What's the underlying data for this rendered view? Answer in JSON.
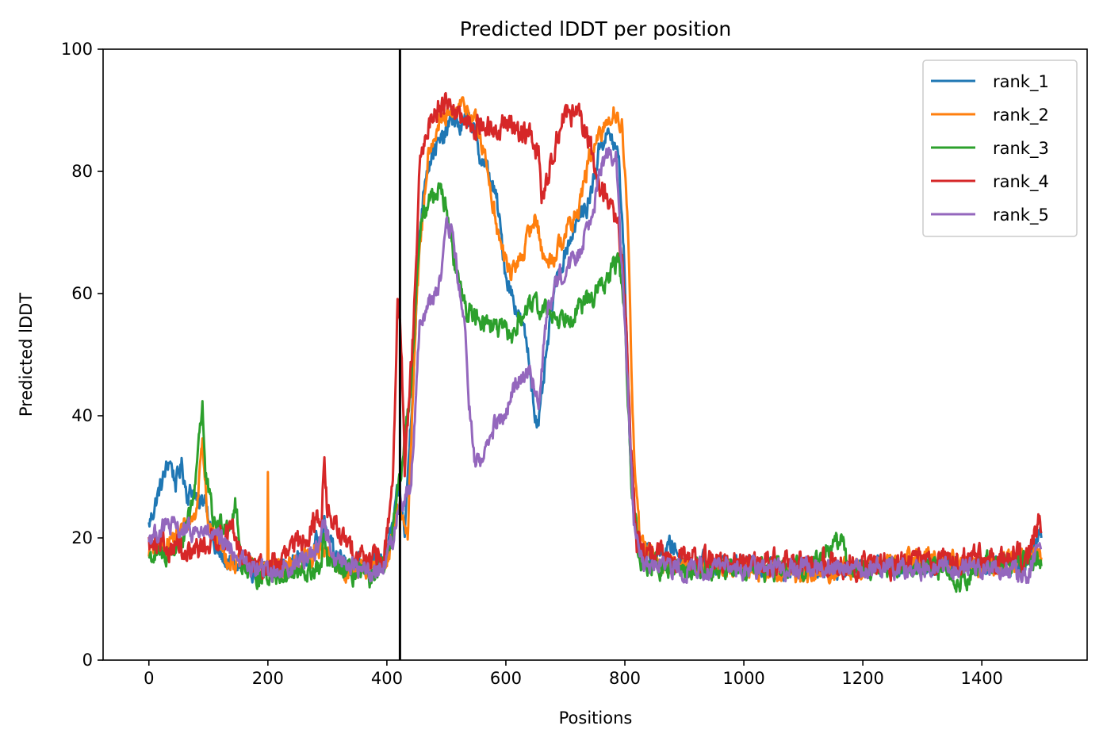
{
  "chart_data": {
    "type": "line",
    "title": "Predicted lDDT per position",
    "xlabel": "Positions",
    "ylabel": "Predicted lDDT",
    "xlim": [
      -77,
      1577
    ],
    "ylim": [
      0,
      100
    ],
    "xticks": [
      0,
      200,
      400,
      600,
      800,
      1000,
      1200,
      1400
    ],
    "yticks": [
      0,
      20,
      40,
      60,
      80,
      100
    ],
    "grid": false,
    "legend_position": "top-right",
    "vertical_line": {
      "x": 422,
      "color": "#000000"
    },
    "series": [
      {
        "name": "rank_1",
        "color": "#1f77b4",
        "noise": 1.3,
        "points": [
          [
            0,
            22
          ],
          [
            15,
            27
          ],
          [
            25,
            30
          ],
          [
            35,
            33
          ],
          [
            45,
            29
          ],
          [
            55,
            32
          ],
          [
            65,
            27
          ],
          [
            75,
            28
          ],
          [
            85,
            25
          ],
          [
            95,
            27
          ],
          [
            110,
            18
          ],
          [
            130,
            16
          ],
          [
            160,
            15
          ],
          [
            200,
            14.5
          ],
          [
            240,
            16
          ],
          [
            270,
            17
          ],
          [
            295,
            22
          ],
          [
            310,
            18
          ],
          [
            340,
            16
          ],
          [
            380,
            15
          ],
          [
            400,
            18
          ],
          [
            410,
            22
          ],
          [
            420,
            28
          ],
          [
            430,
            21
          ],
          [
            445,
            48
          ],
          [
            455,
            70
          ],
          [
            465,
            80
          ],
          [
            480,
            84
          ],
          [
            495,
            85
          ],
          [
            510,
            89
          ],
          [
            525,
            87
          ],
          [
            540,
            89
          ],
          [
            555,
            83
          ],
          [
            570,
            80
          ],
          [
            585,
            75
          ],
          [
            600,
            63
          ],
          [
            620,
            57
          ],
          [
            635,
            52
          ],
          [
            650,
            40
          ],
          [
            655,
            38
          ],
          [
            665,
            47
          ],
          [
            680,
            60
          ],
          [
            700,
            67
          ],
          [
            720,
            72
          ],
          [
            740,
            75
          ],
          [
            760,
            85
          ],
          [
            775,
            86
          ],
          [
            790,
            82
          ],
          [
            800,
            63
          ],
          [
            810,
            30
          ],
          [
            820,
            20
          ],
          [
            840,
            17
          ],
          [
            870,
            18
          ],
          [
            880,
            19
          ],
          [
            900,
            16
          ],
          [
            1000,
            15.5
          ],
          [
            1100,
            15
          ],
          [
            1200,
            15
          ],
          [
            1300,
            16
          ],
          [
            1400,
            15.5
          ],
          [
            1470,
            15
          ],
          [
            1500,
            21
          ]
        ]
      },
      {
        "name": "rank_2",
        "color": "#ff7f0e",
        "noise": 1.3,
        "points": [
          [
            0,
            18
          ],
          [
            30,
            19
          ],
          [
            60,
            22
          ],
          [
            80,
            24
          ],
          [
            90,
            37
          ],
          [
            100,
            22
          ],
          [
            130,
            17
          ],
          [
            160,
            15
          ],
          [
            199,
            15
          ],
          [
            200,
            30
          ],
          [
            201,
            16
          ],
          [
            240,
            15
          ],
          [
            290,
            18
          ],
          [
            320,
            15
          ],
          [
            360,
            14
          ],
          [
            400,
            16
          ],
          [
            420,
            25
          ],
          [
            435,
            20
          ],
          [
            450,
            60
          ],
          [
            470,
            84
          ],
          [
            490,
            88
          ],
          [
            510,
            89
          ],
          [
            530,
            91
          ],
          [
            550,
            88
          ],
          [
            570,
            80
          ],
          [
            590,
            68
          ],
          [
            610,
            63
          ],
          [
            630,
            67
          ],
          [
            650,
            73
          ],
          [
            665,
            65
          ],
          [
            680,
            66
          ],
          [
            700,
            70
          ],
          [
            720,
            73
          ],
          [
            740,
            82
          ],
          [
            760,
            86
          ],
          [
            780,
            90
          ],
          [
            795,
            88
          ],
          [
            805,
            70
          ],
          [
            815,
            35
          ],
          [
            825,
            20
          ],
          [
            850,
            16
          ],
          [
            900,
            15.5
          ],
          [
            1000,
            15
          ],
          [
            1100,
            14
          ],
          [
            1200,
            15
          ],
          [
            1300,
            17
          ],
          [
            1400,
            15
          ],
          [
            1500,
            17
          ]
        ]
      },
      {
        "name": "rank_3",
        "color": "#2ca02c",
        "noise": 1.4,
        "points": [
          [
            0,
            17
          ],
          [
            30,
            17
          ],
          [
            60,
            20
          ],
          [
            75,
            26
          ],
          [
            85,
            38
          ],
          [
            90,
            42
          ],
          [
            95,
            30
          ],
          [
            110,
            22
          ],
          [
            140,
            23
          ],
          [
            145,
            26
          ],
          [
            155,
            16
          ],
          [
            180,
            14
          ],
          [
            220,
            14
          ],
          [
            260,
            14
          ],
          [
            290,
            15
          ],
          [
            295,
            20
          ],
          [
            300,
            16
          ],
          [
            340,
            14
          ],
          [
            380,
            13.5
          ],
          [
            400,
            16
          ],
          [
            420,
            28
          ],
          [
            440,
            45
          ],
          [
            455,
            70
          ],
          [
            470,
            75
          ],
          [
            490,
            78
          ],
          [
            505,
            71
          ],
          [
            515,
            64
          ],
          [
            535,
            57
          ],
          [
            560,
            56
          ],
          [
            590,
            54
          ],
          [
            610,
            53
          ],
          [
            630,
            57
          ],
          [
            650,
            58
          ],
          [
            670,
            57
          ],
          [
            690,
            56
          ],
          [
            710,
            57
          ],
          [
            730,
            58
          ],
          [
            750,
            60
          ],
          [
            770,
            62
          ],
          [
            790,
            66
          ],
          [
            800,
            55
          ],
          [
            812,
            28
          ],
          [
            825,
            16
          ],
          [
            860,
            15
          ],
          [
            900,
            15
          ],
          [
            1000,
            15
          ],
          [
            1100,
            15
          ],
          [
            1165,
            20
          ],
          [
            1175,
            15
          ],
          [
            1200,
            15
          ],
          [
            1300,
            15.5
          ],
          [
            1370,
            13
          ],
          [
            1400,
            16
          ],
          [
            1500,
            16.5
          ]
        ]
      },
      {
        "name": "rank_4",
        "color": "#d62728",
        "noise": 1.6,
        "points": [
          [
            0,
            19
          ],
          [
            20,
            18
          ],
          [
            50,
            19
          ],
          [
            60,
            16
          ],
          [
            80,
            18
          ],
          [
            110,
            20
          ],
          [
            140,
            21
          ],
          [
            150,
            18
          ],
          [
            180,
            15
          ],
          [
            220,
            16
          ],
          [
            260,
            20
          ],
          [
            290,
            24
          ],
          [
            295,
            33
          ],
          [
            300,
            24
          ],
          [
            330,
            19
          ],
          [
            360,
            17
          ],
          [
            395,
            16
          ],
          [
            410,
            30
          ],
          [
            418,
            58
          ],
          [
            425,
            50
          ],
          [
            430,
            30
          ],
          [
            445,
            55
          ],
          [
            455,
            80
          ],
          [
            470,
            88
          ],
          [
            490,
            91
          ],
          [
            505,
            92
          ],
          [
            520,
            89
          ],
          [
            540,
            87
          ],
          [
            560,
            88
          ],
          [
            580,
            86
          ],
          [
            600,
            88
          ],
          [
            620,
            87
          ],
          [
            640,
            86
          ],
          [
            655,
            83
          ],
          [
            660,
            76
          ],
          [
            670,
            78
          ],
          [
            680,
            84
          ],
          [
            700,
            90
          ],
          [
            720,
            89
          ],
          [
            740,
            85
          ],
          [
            755,
            78
          ],
          [
            770,
            76
          ],
          [
            790,
            70
          ],
          [
            800,
            60
          ],
          [
            810,
            35
          ],
          [
            820,
            20
          ],
          [
            840,
            17
          ],
          [
            900,
            16.5
          ],
          [
            1000,
            16
          ],
          [
            1100,
            16
          ],
          [
            1200,
            15.5
          ],
          [
            1300,
            16
          ],
          [
            1400,
            16.5
          ],
          [
            1480,
            17
          ],
          [
            1495,
            23
          ],
          [
            1500,
            20
          ]
        ]
      },
      {
        "name": "rank_5",
        "color": "#9467bd",
        "noise": 1.3,
        "points": [
          [
            0,
            20
          ],
          [
            30,
            22
          ],
          [
            60,
            21
          ],
          [
            90,
            21
          ],
          [
            110,
            20
          ],
          [
            140,
            18
          ],
          [
            170,
            15
          ],
          [
            210,
            14.5
          ],
          [
            250,
            16
          ],
          [
            280,
            18
          ],
          [
            295,
            22
          ],
          [
            310,
            17
          ],
          [
            350,
            15
          ],
          [
            390,
            14.5
          ],
          [
            410,
            20
          ],
          [
            420,
            25
          ],
          [
            440,
            28
          ],
          [
            455,
            55
          ],
          [
            470,
            58
          ],
          [
            490,
            62
          ],
          [
            500,
            70
          ],
          [
            510,
            70
          ],
          [
            520,
            62
          ],
          [
            530,
            55
          ],
          [
            540,
            40
          ],
          [
            548,
            32
          ],
          [
            560,
            33
          ],
          [
            580,
            38
          ],
          [
            600,
            40
          ],
          [
            620,
            46
          ],
          [
            640,
            48
          ],
          [
            655,
            41
          ],
          [
            670,
            58
          ],
          [
            690,
            63
          ],
          [
            700,
            64
          ],
          [
            720,
            66
          ],
          [
            740,
            72
          ],
          [
            755,
            78
          ],
          [
            770,
            84
          ],
          [
            785,
            82
          ],
          [
            800,
            55
          ],
          [
            815,
            22
          ],
          [
            830,
            15.5
          ],
          [
            900,
            15
          ],
          [
            1000,
            15
          ],
          [
            1100,
            15
          ],
          [
            1200,
            15
          ],
          [
            1300,
            15
          ],
          [
            1400,
            15
          ],
          [
            1480,
            14
          ],
          [
            1500,
            20
          ]
        ]
      }
    ]
  }
}
